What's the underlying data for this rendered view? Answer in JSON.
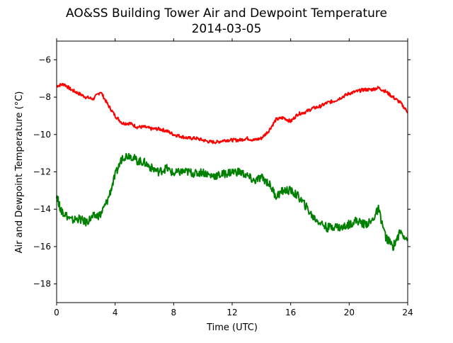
{
  "chart_data": {
    "type": "line",
    "title": "AO&SS Building Tower Air and Dewpoint Temperature",
    "subtitle": "2014-03-05",
    "xlabel": "Time (UTC)",
    "ylabel": "Air and Dewpoint Temperature (°C)",
    "xlim": [
      0,
      24
    ],
    "ylim": [
      -19,
      -5
    ],
    "xticks": [
      0,
      4,
      8,
      12,
      16,
      20,
      24
    ],
    "xtick_labels": [
      "0",
      "4",
      "8",
      "12",
      "16",
      "20",
      "24"
    ],
    "yticks": [
      -18,
      -16,
      -14,
      -12,
      -10,
      -8,
      -6
    ],
    "ytick_labels": [
      "−18",
      "−16",
      "−14",
      "−12",
      "−10",
      "−8",
      "−6"
    ],
    "grid": false,
    "legend": null,
    "series": [
      {
        "color": "#ff0000",
        "x": [
          0,
          0.5,
          1,
          1.5,
          2,
          2.5,
          3,
          3.5,
          4,
          4.5,
          5,
          5.5,
          6,
          6.5,
          7,
          7.5,
          8,
          8.5,
          9,
          9.5,
          10,
          10.5,
          11,
          11.5,
          12,
          12.5,
          13,
          13.5,
          14,
          14.5,
          15,
          15.5,
          16,
          16.5,
          17,
          17.5,
          18,
          18.5,
          19,
          19.5,
          20,
          20.5,
          21,
          21.5,
          22,
          22.5,
          23,
          23.5,
          24
        ],
        "y": [
          -7.4,
          -7.3,
          -7.6,
          -7.8,
          -8.0,
          -8.1,
          -7.7,
          -8.4,
          -9.0,
          -9.4,
          -9.4,
          -9.6,
          -9.6,
          -9.7,
          -9.7,
          -9.8,
          -10.0,
          -10.1,
          -10.2,
          -10.2,
          -10.3,
          -10.4,
          -10.4,
          -10.3,
          -10.3,
          -10.3,
          -10.2,
          -10.3,
          -10.2,
          -9.8,
          -9.2,
          -9.1,
          -9.3,
          -8.9,
          -8.8,
          -8.6,
          -8.5,
          -8.3,
          -8.2,
          -8.0,
          -7.8,
          -7.7,
          -7.6,
          -7.6,
          -7.5,
          -7.7,
          -8.0,
          -8.3,
          -8.8
        ]
      },
      {
        "color": "#008000",
        "x": [
          0,
          0.25,
          0.5,
          1,
          1.5,
          2,
          2.5,
          3,
          3.5,
          4,
          4.5,
          5,
          5.5,
          6,
          6.5,
          7,
          7.5,
          8,
          8.5,
          9,
          9.5,
          10,
          10.5,
          11,
          11.5,
          12,
          12.5,
          13,
          13.5,
          14,
          14.5,
          15,
          15.5,
          16,
          16.5,
          17,
          17.5,
          18,
          18.5,
          19,
          19.5,
          20,
          20.5,
          21,
          21.5,
          22,
          22.5,
          23,
          23.5,
          24
        ],
        "y": [
          -13.2,
          -14.0,
          -14.2,
          -14.6,
          -14.5,
          -14.7,
          -14.4,
          -14.3,
          -13.5,
          -12.2,
          -11.2,
          -11.1,
          -11.4,
          -11.5,
          -11.8,
          -12.0,
          -11.8,
          -12.1,
          -12.0,
          -12.0,
          -12.1,
          -12.0,
          -12.2,
          -12.2,
          -12.1,
          -12.0,
          -12.0,
          -12.2,
          -12.5,
          -12.3,
          -12.6,
          -13.3,
          -13.0,
          -13.0,
          -13.3,
          -13.8,
          -14.4,
          -14.7,
          -15.0,
          -14.9,
          -15.0,
          -14.8,
          -14.6,
          -14.8,
          -14.7,
          -14.0,
          -15.5,
          -16.0,
          -15.2,
          -15.6
        ]
      }
    ]
  }
}
